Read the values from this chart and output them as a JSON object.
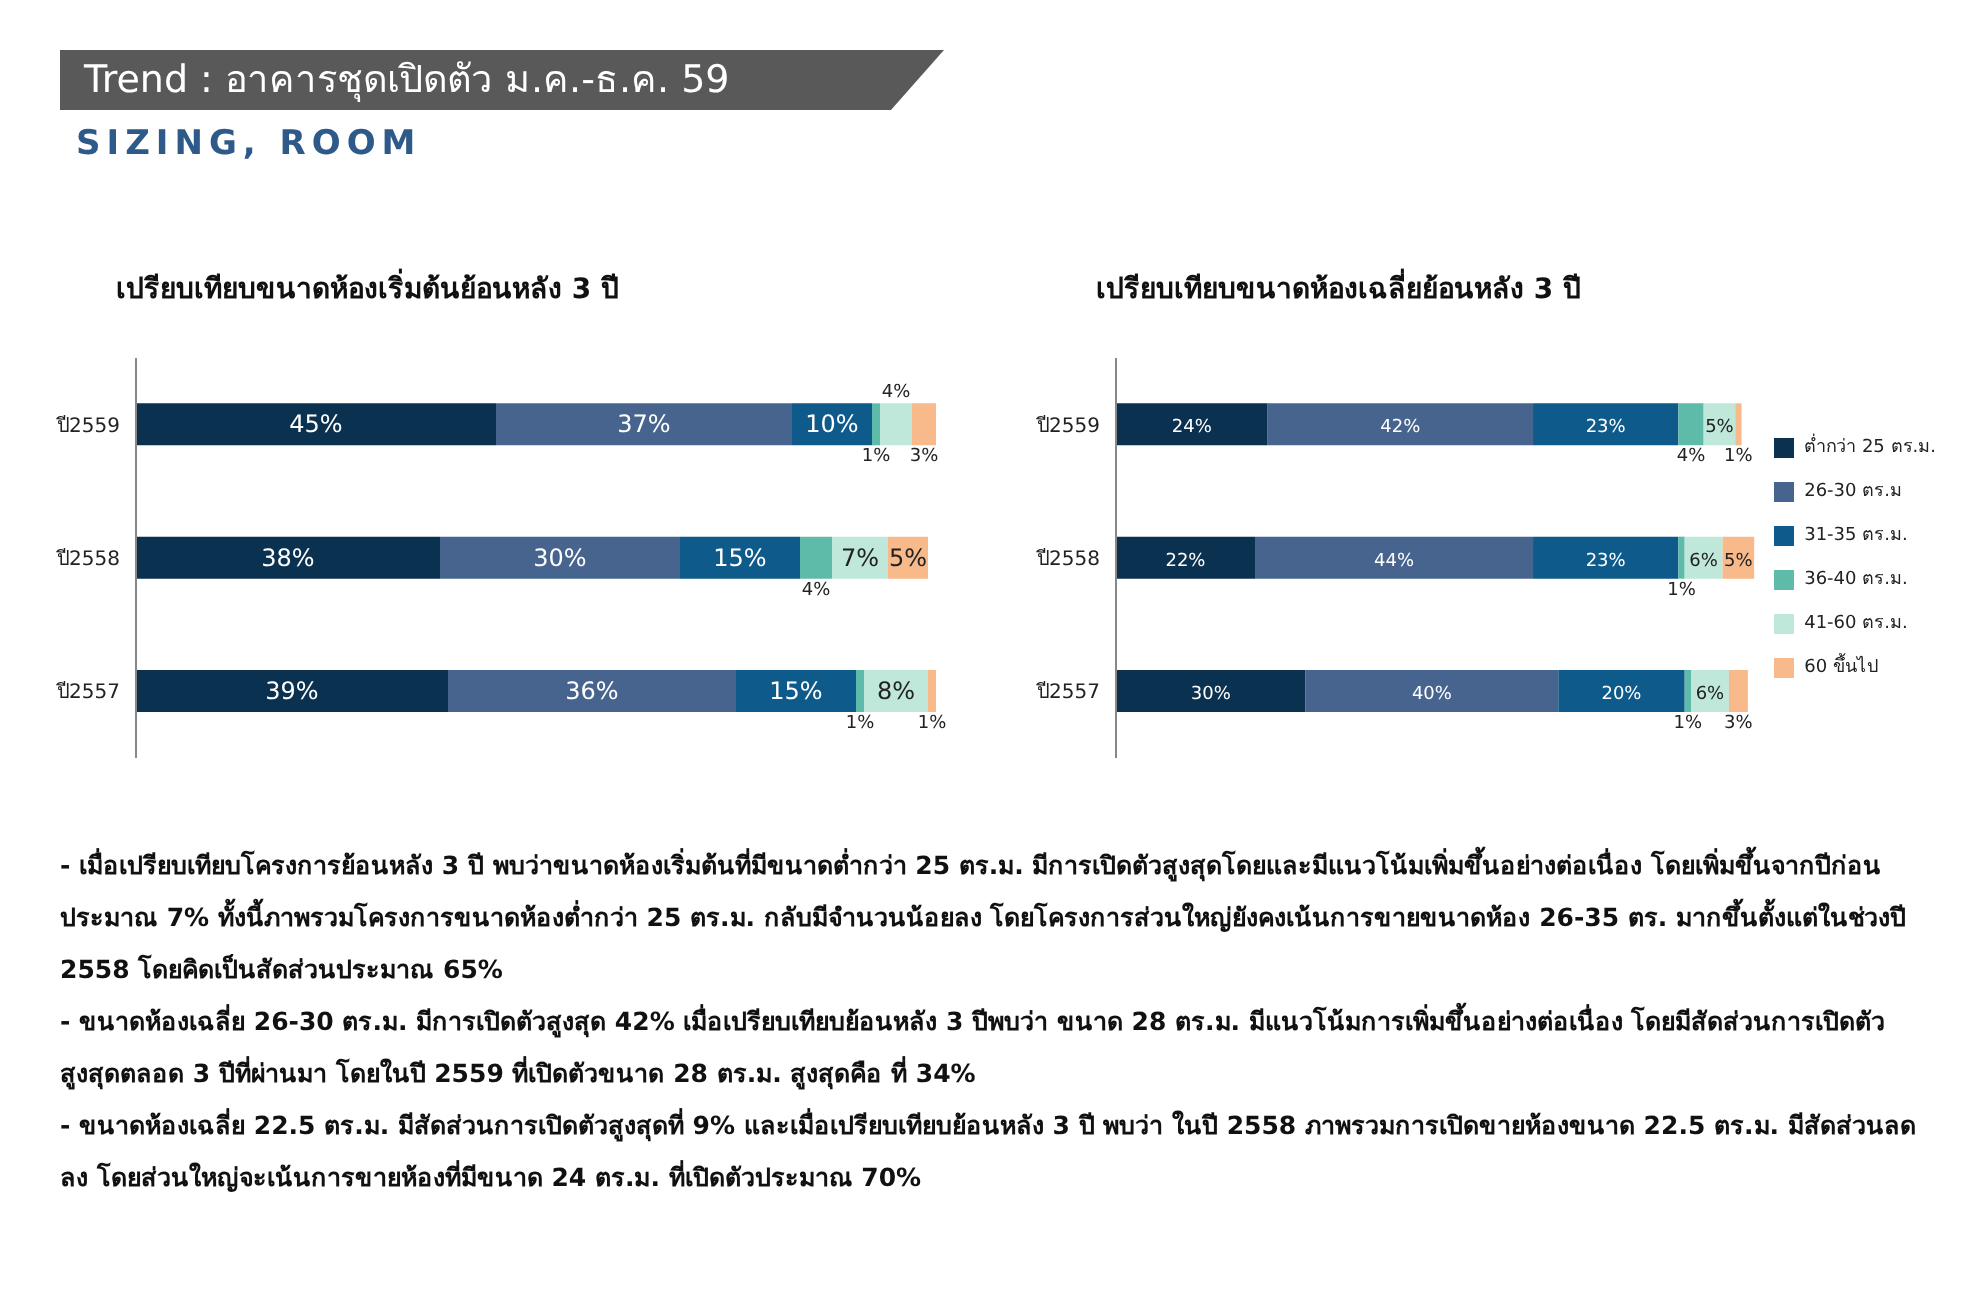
{
  "chart_data": [
    {
      "type": "bar",
      "orientation": "horizontal",
      "stacked": true,
      "title": "เปรียบเทียบขนาดห้องเริ่มต้นย้อนหลัง 3 ปี",
      "categories": [
        "ปี2559",
        "ปี2558",
        "ปี2557"
      ],
      "legend": false,
      "grid": false,
      "series": [
        {
          "color": "#0b3150",
          "values": [
            45,
            38,
            39
          ],
          "value_labels": [
            "45%",
            "38%",
            "39%"
          ]
        },
        {
          "color": "#46648e",
          "values": [
            37,
            30,
            36
          ],
          "value_labels": [
            "37%",
            "30%",
            "36%"
          ]
        },
        {
          "color": "#0d5a8b",
          "values": [
            10,
            15,
            15
          ],
          "value_labels": [
            "10%",
            "15%",
            "15%"
          ]
        },
        {
          "color": "#5fbba9",
          "values": [
            1,
            4,
            1
          ],
          "value_labels": [
            "1%",
            "4%",
            "1%"
          ]
        },
        {
          "color": "#bfe7da",
          "values": [
            4,
            7,
            8
          ],
          "value_labels": [
            "4%",
            "7%",
            "8%"
          ]
        },
        {
          "color": "#f8b98b",
          "values": [
            3,
            5,
            1
          ],
          "value_labels": [
            "3%",
            "5%",
            "1%"
          ]
        }
      ],
      "annotations": [
        "Trend : อาคารชุดเปิดตัว ม.ค.-ธ.ค. 59",
        "SIZING, ROOM",
        "- เมื่อเปรียบเทียบโครงการย้อนหลัง 3 ปี พบว่าขนาดห้องเริ่มต้นที่มีขนาดต่ำกว่า 25 ตร.ม. มีการเปิดตัวสูงสุดโดยและมีแนวโน้มเพิ่มขึ้นอย่างต่อเนื่อง โดยเพิ่มขึ้นจากปีก่อนประมาณ 7% ทั้งนี้ภาพรวมโครงการขนาดห้องต่ำกว่า 25 ตร.ม. กลับมีจำนวนน้อยลง โดยโครงการส่วนใหญ่ยังคงเน้นการขายขนาดห้อง 26-35 ตร. มากขึ้นตั้งแต่ในช่วงปี 2558 โดยคิดเป็นสัดส่วนประมาณ 65%",
        "- ขนาดห้องเฉลี่ย 26-30 ตร.ม. มีการเปิดตัวสูงสุด 42% เมื่อเปรียบเทียบย้อนหลัง 3 ปีพบว่า ขนาด 28 ตร.ม. มีแนวโน้มการเพิ่มขึ้นอย่างต่อเนื่อง โดยมีสัดส่วนการเปิดตัวสูงสุดตลอด 3 ปีที่ผ่านมา โดยในปี 2559 ที่เปิดตัวขนาด 28 ตร.ม. สูงสุดคือ ที่ 34%",
        "- ขนาดห้องเฉลี่ย 22.5 ตร.ม. มีสัดส่วนการเปิดตัวสูงสุดที่ 9% และเมื่อเปรียบเทียบย้อนหลัง 3 ปี พบว่า ในปี 2558 ภาพรวมการเปิดขายห้องขนาด 22.5 ตร.ม. มีสัดส่วนลดลง โดยส่วนใหญ่จะเน้นการขายห้องที่มีขนาด 24 ตร.ม. ที่เปิดตัวประมาณ 70%"
      ]
    },
    {
      "type": "bar",
      "orientation": "horizontal",
      "stacked": true,
      "title": "เปรียบเทียบขนาดห้องเฉลี่ยย้อนหลัง 3 ปี",
      "categories": [
        "ปี2559",
        "ปี2558",
        "ปี2557"
      ],
      "legend": "right",
      "grid": false,
      "series": [
        {
          "name": "ต่ำกว่า 25 ตร.ม.",
          "color": "#0b3150",
          "values": [
            24,
            22,
            30
          ],
          "value_labels": [
            "24%",
            "22%",
            "30%"
          ]
        },
        {
          "name": "26-30 ตร.ม",
          "color": "#46648e",
          "values": [
            42,
            44,
            40
          ],
          "value_labels": [
            "42%",
            "44%",
            "40%"
          ]
        },
        {
          "name": "31-35 ตร.ม.",
          "color": "#0d5a8b",
          "values": [
            23,
            23,
            20
          ],
          "value_labels": [
            "23%",
            "23%",
            "20%"
          ]
        },
        {
          "name": "36-40 ตร.ม.",
          "color": "#5fbba9",
          "values": [
            4,
            1,
            1
          ],
          "value_labels": [
            "4%",
            "1%",
            "1%"
          ]
        },
        {
          "name": "41-60 ตร.ม.",
          "color": "#bfe7da",
          "values": [
            5,
            6,
            6
          ],
          "value_labels": [
            "5%",
            "6%",
            "6%"
          ]
        },
        {
          "name": "60 ขึ้นไป",
          "color": "#f8b98b",
          "values": [
            1,
            5,
            3
          ],
          "value_labels": [
            "1%",
            "5%",
            "3%"
          ]
        }
      ]
    }
  ]
}
